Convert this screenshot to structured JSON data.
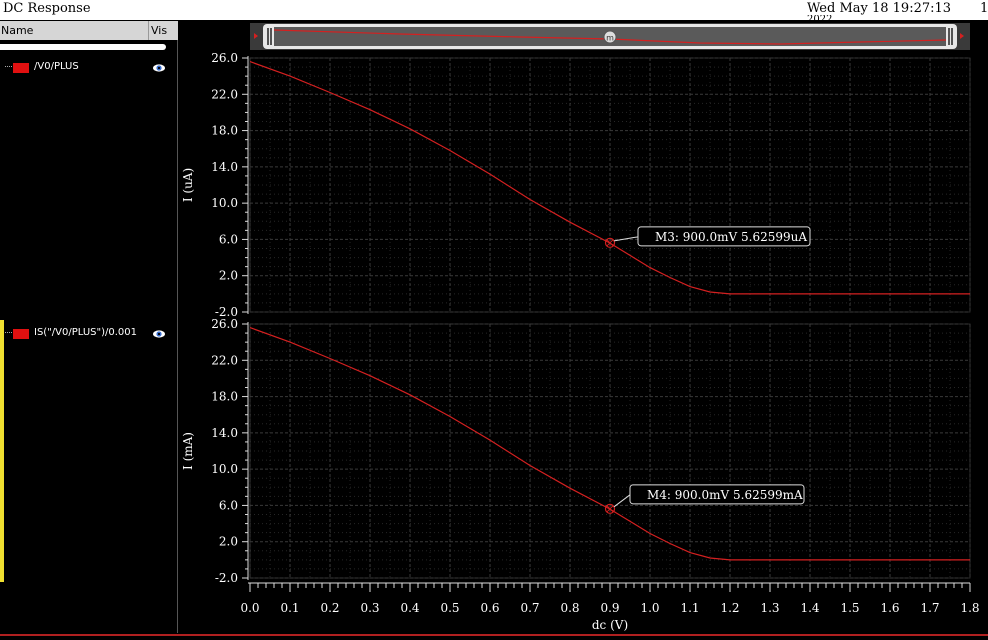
{
  "window": {
    "title": "DC Response",
    "date": "Wed May 18 19:27:13",
    "year": "2022",
    "page_num": "1"
  },
  "sidebar": {
    "col_name": "Name",
    "col_vis": "Vis",
    "traces": [
      {
        "label": "/V0/PLUS",
        "color": "#e01010",
        "icon": "eye-icon"
      },
      {
        "label": "IS(\"/V0/PLUS\")/0.001",
        "color": "#e01010",
        "icon": "eye-icon"
      }
    ]
  },
  "scrollbar": {
    "marker_label": "m"
  },
  "chart_data": [
    {
      "type": "line",
      "ylabel": "I (uA)",
      "xlim": [
        0.0,
        1.8
      ],
      "ylim": [
        -2.0,
        26.0
      ],
      "yticks": [
        "26.0",
        "22.0",
        "18.0",
        "14.0",
        "10.0",
        "6.0",
        "2.0",
        "-2.0"
      ],
      "grid": true,
      "series": [
        {
          "color": "#d42020",
          "x": [
            0.0,
            0.1,
            0.2,
            0.3,
            0.4,
            0.5,
            0.6,
            0.7,
            0.8,
            0.9,
            1.0,
            1.05,
            1.1,
            1.15,
            1.2,
            1.3,
            1.4,
            1.5,
            1.6,
            1.7,
            1.8
          ],
          "y": [
            25.6,
            24.0,
            22.2,
            20.3,
            18.2,
            15.8,
            13.2,
            10.4,
            7.9,
            5.6,
            2.9,
            1.8,
            0.8,
            0.2,
            0.0,
            0.0,
            0.0,
            0.0,
            0.0,
            0.0,
            0.0
          ]
        }
      ],
      "marker": {
        "label": "M3: 900.0mV 5.62599uA",
        "x": 0.9,
        "y": 5.62599
      }
    },
    {
      "type": "line",
      "ylabel": "I (mA)",
      "xlabel": "dc (V)",
      "xlim": [
        0.0,
        1.8
      ],
      "ylim": [
        -2.0,
        26.0
      ],
      "yticks": [
        "26.0",
        "22.0",
        "18.0",
        "14.0",
        "10.0",
        "6.0",
        "2.0",
        "-2.0"
      ],
      "xticks": [
        "0.0",
        "0.1",
        "0.2",
        "0.3",
        "0.4",
        "0.5",
        "0.6",
        "0.7",
        "0.8",
        "0.9",
        "1.0",
        "1.1",
        "1.2",
        "1.3",
        "1.4",
        "1.5",
        "1.6",
        "1.7",
        "1.8"
      ],
      "grid": true,
      "series": [
        {
          "color": "#d42020",
          "x": [
            0.0,
            0.1,
            0.2,
            0.3,
            0.4,
            0.5,
            0.6,
            0.7,
            0.8,
            0.9,
            1.0,
            1.05,
            1.1,
            1.15,
            1.2,
            1.3,
            1.4,
            1.5,
            1.6,
            1.7,
            1.8
          ],
          "y": [
            25.6,
            24.0,
            22.2,
            20.3,
            18.2,
            15.8,
            13.2,
            10.4,
            7.9,
            5.6,
            2.9,
            1.8,
            0.8,
            0.2,
            0.0,
            0.0,
            0.0,
            0.0,
            0.0,
            0.0,
            0.0
          ]
        }
      ],
      "marker": {
        "label": "M4: 900.0mV 5.62599mA",
        "x": 0.9,
        "y": 5.62599
      }
    }
  ]
}
